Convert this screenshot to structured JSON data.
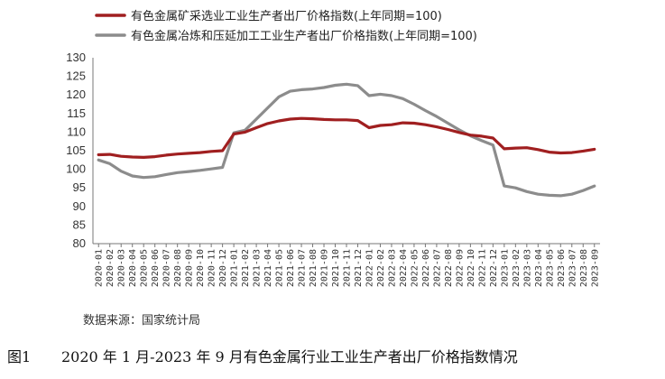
{
  "chart_data": {
    "type": "line",
    "categories": [
      "2020-01",
      "2020-02",
      "2020-03",
      "2020-04",
      "2020-05",
      "2020-06",
      "2020-07",
      "2020-08",
      "2020-09",
      "2020-10",
      "2020-11",
      "2020-12",
      "2021-01",
      "2021-02",
      "2021-03",
      "2021-04",
      "2021-05",
      "2021-06",
      "2021-07",
      "2021-08",
      "2021-09",
      "2021-10",
      "2021-11",
      "2021-12",
      "2022-01",
      "2022-02",
      "2022-03",
      "2022-04",
      "2022-05",
      "2022-06",
      "2022-07",
      "2022-08",
      "2022-09",
      "2022-10",
      "2022-11",
      "2022-12",
      "2023-01",
      "2023-02",
      "2023-03",
      "2023-04",
      "2023-05",
      "2023-06",
      "2023-07",
      "2023-08",
      "2023-09"
    ],
    "series": [
      {
        "name": "有色金属矿采选业工业生产者出厂价格指数(上年同期=100)",
        "color": "#a01f20",
        "values": [
          103.9,
          104.0,
          103.5,
          103.3,
          103.2,
          103.4,
          103.8,
          104.1,
          104.3,
          104.5,
          104.8,
          105.0,
          109.5,
          110.0,
          111.2,
          112.3,
          113.0,
          113.5,
          113.7,
          113.6,
          113.4,
          113.3,
          113.3,
          113.1,
          111.2,
          111.8,
          112.0,
          112.5,
          112.4,
          112.0,
          111.4,
          110.7,
          109.9,
          109.2,
          108.9,
          108.4,
          105.5,
          105.7,
          105.8,
          105.3,
          104.6,
          104.4,
          104.5,
          104.9,
          105.4
        ]
      },
      {
        "name": "有色金属冶炼和压延加工工业生产者出厂价格指数(上年同期=100)",
        "color": "#8c8c8c",
        "values": [
          102.5,
          101.5,
          99.5,
          98.2,
          97.8,
          98.0,
          98.6,
          99.1,
          99.4,
          99.7,
          100.1,
          100.5,
          109.8,
          110.5,
          113.5,
          116.5,
          119.5,
          121.0,
          121.4,
          121.6,
          122.0,
          122.6,
          122.9,
          122.5,
          119.8,
          120.2,
          119.8,
          119.0,
          117.5,
          115.8,
          114.2,
          112.4,
          110.6,
          109.0,
          107.7,
          106.5,
          95.5,
          95.0,
          94.0,
          93.3,
          93.0,
          92.9,
          93.3,
          94.3,
          95.5
        ]
      }
    ],
    "ylim": [
      80,
      130
    ],
    "yticks": [
      80,
      85,
      90,
      95,
      100,
      105,
      110,
      115,
      120,
      125,
      130
    ],
    "grid": false,
    "legend_position": "top-left"
  },
  "source": "数据来源：国家统计局",
  "caption": {
    "fig_no": "图1",
    "title": "2020 年 1 月-2023 年 9 月有色金属行业工业生产者出厂价格指数情况"
  }
}
